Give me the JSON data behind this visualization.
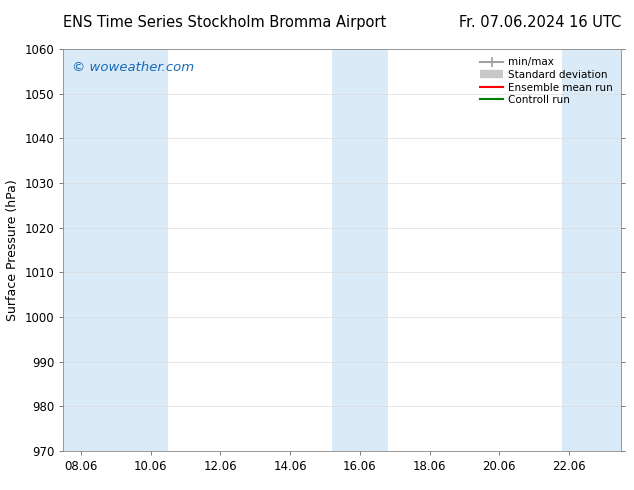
{
  "title_left": "ENS Time Series Stockholm Bromma Airport",
  "title_right": "Fr. 07.06.2024 16 UTC",
  "ylabel": "Surface Pressure (hPa)",
  "ylim": [
    970,
    1060
  ],
  "yticks": [
    970,
    980,
    990,
    1000,
    1010,
    1020,
    1030,
    1040,
    1050,
    1060
  ],
  "xtick_labels": [
    "08.06",
    "10.06",
    "12.06",
    "14.06",
    "16.06",
    "18.06",
    "20.06",
    "22.06"
  ],
  "xtick_positions": [
    0,
    2,
    4,
    6,
    8,
    10,
    12,
    14
  ],
  "x_range": [
    -0.5,
    15.5
  ],
  "watermark": "© woweather.com",
  "watermark_color": "#1a6aba",
  "bg_color": "#ffffff",
  "shaded_bands": [
    {
      "x_start": -0.5,
      "x_end": 1.2,
      "color": "#daeaf6"
    },
    {
      "x_start": 1.2,
      "x_end": 2.5,
      "color": "#daeaf6"
    },
    {
      "x_start": 7.2,
      "x_end": 8.8,
      "color": "#daeaf6"
    },
    {
      "x_start": 13.8,
      "x_end": 15.5,
      "color": "#daeaf6"
    }
  ],
  "legend_entries": [
    {
      "label": "min/max",
      "color": "#a0a0a0",
      "lw": 1.5
    },
    {
      "label": "Standard deviation",
      "color": "#c8c8c8",
      "lw": 6
    },
    {
      "label": "Ensemble mean run",
      "color": "#ff0000",
      "lw": 1.5
    },
    {
      "label": "Controll run",
      "color": "#008000",
      "lw": 1.5
    }
  ],
  "title_fontsize": 10.5,
  "tick_fontsize": 8.5,
  "ylabel_fontsize": 9
}
